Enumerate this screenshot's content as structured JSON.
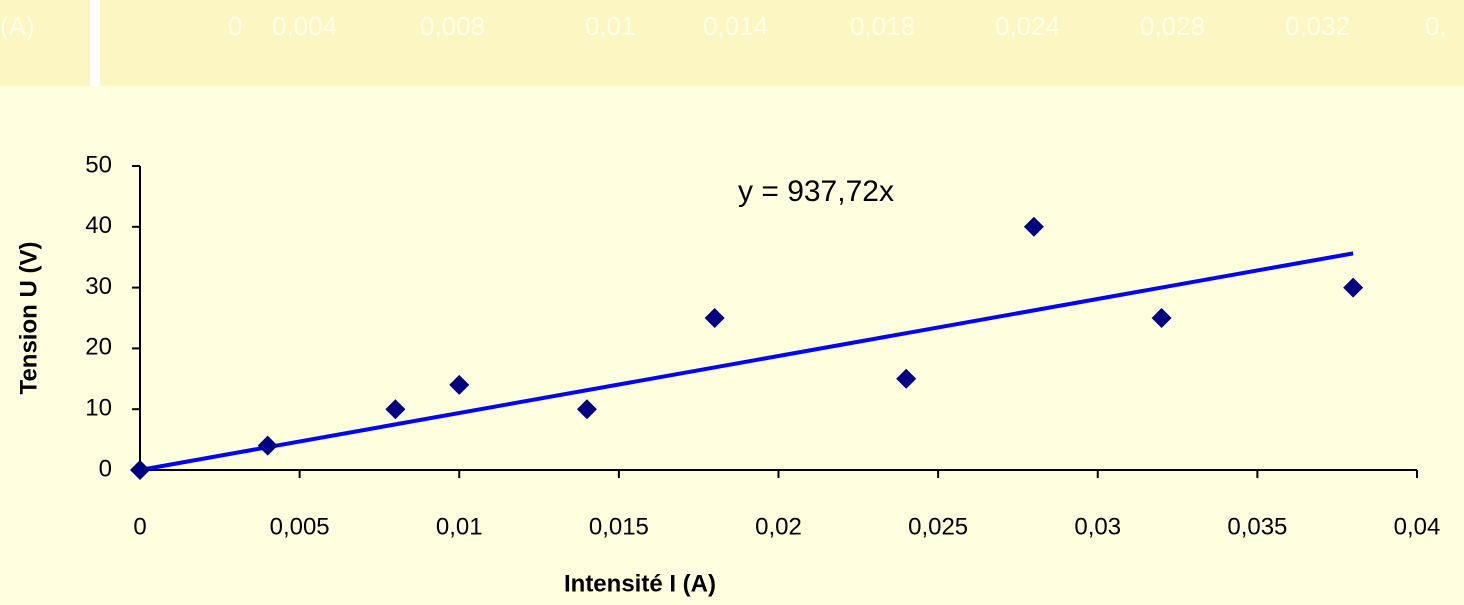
{
  "header_row": {
    "cells": [
      "(A)",
      "0",
      "0,004",
      "0,008",
      "0,01",
      "0,014",
      "0,018",
      "0,024",
      "0,028",
      "0,032",
      "0,"
    ]
  },
  "chart_data": {
    "type": "scatter",
    "x_label": "Intensité I (A)",
    "y_label": "Tension U (V)",
    "series": [
      {
        "name": "U",
        "color": "#000080",
        "x": [
          0,
          0.004,
          0.008,
          0.01,
          0.014,
          0.018,
          0.024,
          0.028,
          0.032,
          0.038
        ],
        "values": [
          0,
          4,
          10,
          14,
          10,
          25,
          15,
          40,
          25,
          30
        ]
      }
    ],
    "trendline": {
      "equation": "y = 937,72x",
      "slope": 937.72,
      "color": "#0000ff"
    },
    "xlim": [
      0,
      0.04
    ],
    "xticks": [
      0,
      {
        "value": 0.005,
        "label": "0,005"
      },
      {
        "value": 0.01,
        "label": "0,01"
      },
      {
        "value": 0.015,
        "label": "0,015"
      },
      {
        "value": 0.02,
        "label": "0,02"
      },
      {
        "value": 0.025,
        "label": "0,025"
      },
      {
        "value": 0.03,
        "label": "0,03"
      },
      {
        "value": 0.035,
        "label": "0,035"
      },
      {
        "value": 0.04,
        "label": "0,04"
      }
    ],
    "ylim": [
      0,
      50
    ],
    "yticks": [
      0,
      10,
      20,
      30,
      40,
      50
    ],
    "grid": false
  }
}
